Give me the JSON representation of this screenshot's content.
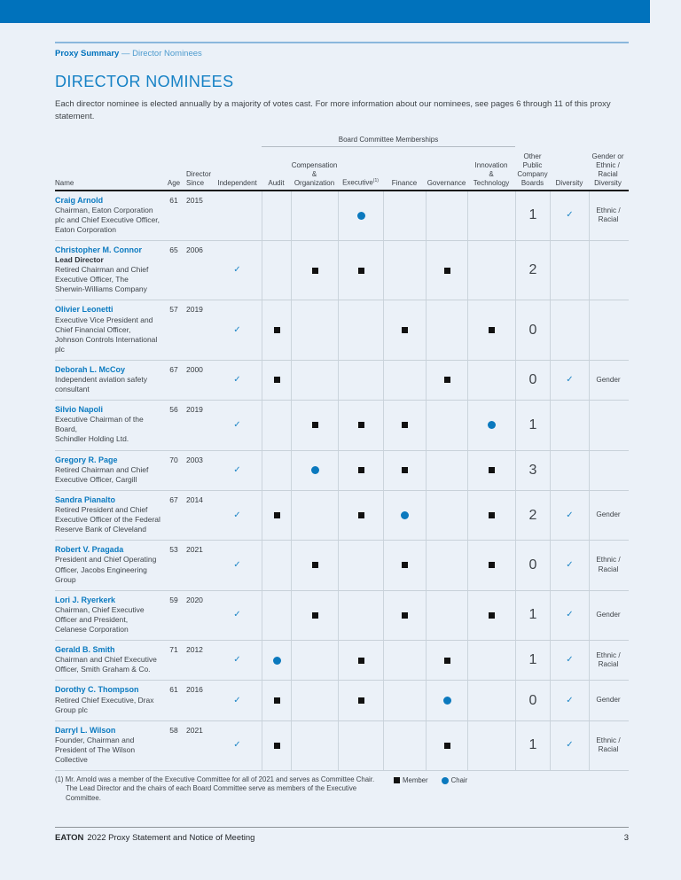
{
  "colors": {
    "brand_blue": "#0072bc",
    "heading_blue": "#1581c5",
    "link_blue": "#0b7ac0",
    "check_blue": "#1e86c6",
    "chair_blue": "#0b79be",
    "member_black": "#111111",
    "page_background": "#ebf1f8"
  },
  "breadcrumb": {
    "section": "Proxy Summary",
    "rest": " — Director Nominees"
  },
  "heading": "DIRECTOR NOMINEES",
  "intro": "Each director nominee is elected annually by a majority of votes cast. For more information about our nominees, see pages 6 through 11 of this proxy statement.",
  "table": {
    "group_header": "Board Committee Memberships",
    "headers": [
      {
        "label": "Name"
      },
      {
        "label": "Age"
      },
      {
        "label": "Director\nSince"
      },
      {
        "label": "Independent"
      },
      {
        "label": "Audit"
      },
      {
        "label": "Compensation\n&\nOrganization"
      },
      {
        "label": "Executive",
        "sup": "(1)"
      },
      {
        "label": "Finance"
      },
      {
        "label": "Governance"
      },
      {
        "label": "Innovation\n&\nTechnology"
      },
      {
        "label": "Other\nPublic\nCompany\nBoards"
      },
      {
        "label": "Diversity"
      },
      {
        "label": "Gender or\nEthnic /\nRacial\nDiversity"
      }
    ],
    "rows": [
      {
        "name": "Craig Arnold",
        "subtitle": "",
        "description": "Chairman, Eaton Corporation\nplc and Chief Executive Officer,\nEaton Corporation",
        "age": "61",
        "since": "2015",
        "independent": false,
        "committees": [
          "",
          "",
          "chair",
          "",
          "",
          ""
        ],
        "boards": "1",
        "diversity": true,
        "gender": "Ethnic /\nRacial"
      },
      {
        "name": "Christopher M. Connor",
        "subtitle": "Lead Director",
        "description": "Retired Chairman and Chief\nExecutive Officer, The\nSherwin-Williams Company",
        "age": "65",
        "since": "2006",
        "independent": true,
        "committees": [
          "",
          "member",
          "member",
          "",
          "member",
          ""
        ],
        "boards": "2",
        "diversity": false,
        "gender": ""
      },
      {
        "name": "Olivier Leonetti",
        "subtitle": "",
        "description": "Executive Vice President and\nChief Financial Officer,\nJohnson Controls International\nplc",
        "age": "57",
        "since": "2019",
        "independent": true,
        "committees": [
          "member",
          "",
          "",
          "member",
          "",
          "member"
        ],
        "boards": "0",
        "diversity": false,
        "gender": ""
      },
      {
        "name": "Deborah L. McCoy",
        "subtitle": "",
        "description": "Independent aviation safety\nconsultant",
        "age": "67",
        "since": "2000",
        "independent": true,
        "committees": [
          "member",
          "",
          "",
          "",
          "member",
          ""
        ],
        "boards": "0",
        "diversity": true,
        "gender": "Gender"
      },
      {
        "name": "Silvio Napoli",
        "subtitle": "",
        "description": "Executive Chairman of the\nBoard,\nSchindler Holding Ltd.",
        "age": "56",
        "since": "2019",
        "independent": true,
        "committees": [
          "",
          "member",
          "member",
          "member",
          "",
          "chair"
        ],
        "boards": "1",
        "diversity": false,
        "gender": ""
      },
      {
        "name": "Gregory R. Page",
        "subtitle": "",
        "description": "Retired Chairman and Chief\nExecutive Officer, Cargill",
        "age": "70",
        "since": "2003",
        "independent": true,
        "committees": [
          "",
          "chair",
          "member",
          "member",
          "",
          "member"
        ],
        "boards": "3",
        "diversity": false,
        "gender": ""
      },
      {
        "name": "Sandra Pianalto",
        "subtitle": "",
        "description": "Retired President and Chief\nExecutive Officer of the Federal\nReserve Bank of Cleveland",
        "age": "67",
        "since": "2014",
        "independent": true,
        "committees": [
          "member",
          "",
          "member",
          "chair",
          "",
          "member"
        ],
        "boards": "2",
        "diversity": true,
        "gender": "Gender"
      },
      {
        "name": "Robert V. Pragada",
        "subtitle": "",
        "description": "President and Chief Operating\nOfficer, Jacobs Engineering\nGroup",
        "age": "53",
        "since": "2021",
        "independent": true,
        "committees": [
          "",
          "member",
          "",
          "member",
          "",
          "member"
        ],
        "boards": "0",
        "diversity": true,
        "gender": "Ethnic /\nRacial"
      },
      {
        "name": "Lori J. Ryerkerk",
        "subtitle": "",
        "description": "Chairman, Chief Executive\nOfficer and President,\nCelanese Corporation",
        "age": "59",
        "since": "2020",
        "independent": true,
        "committees": [
          "",
          "member",
          "",
          "member",
          "",
          "member"
        ],
        "boards": "1",
        "diversity": true,
        "gender": "Gender"
      },
      {
        "name": "Gerald B. Smith",
        "subtitle": "",
        "description": "Chairman and Chief Executive\nOfficer, Smith Graham & Co.",
        "age": "71",
        "since": "2012",
        "independent": true,
        "committees": [
          "chair",
          "",
          "member",
          "",
          "member",
          ""
        ],
        "boards": "1",
        "diversity": true,
        "gender": "Ethnic /\nRacial"
      },
      {
        "name": "Dorothy C. Thompson",
        "subtitle": "",
        "description": "Retired Chief Executive, Drax\nGroup plc",
        "age": "61",
        "since": "2016",
        "independent": true,
        "committees": [
          "member",
          "",
          "member",
          "",
          "chair",
          ""
        ],
        "boards": "0",
        "diversity": true,
        "gender": "Gender"
      },
      {
        "name": "Darryl L. Wilson",
        "subtitle": "",
        "description": "Founder, Chairman and\nPresident of The Wilson\nCollective",
        "age": "58",
        "since": "2021",
        "independent": true,
        "committees": [
          "member",
          "",
          "",
          "",
          "member",
          ""
        ],
        "boards": "1",
        "diversity": true,
        "gender": "Ethnic /\nRacial"
      }
    ]
  },
  "footnote": {
    "marker": "(1)",
    "text": " Mr. Arnold was a member of the Executive Committee for all of 2021 and serves as Committee Chair. The Lead Director and the chairs of each Board Committee serve as members of the Executive Committee."
  },
  "legend": {
    "member": "Member",
    "chair": "Chair"
  },
  "footer": {
    "brand": "EATON",
    "title": "2022 Proxy Statement and Notice of Meeting",
    "page_number": "3"
  }
}
